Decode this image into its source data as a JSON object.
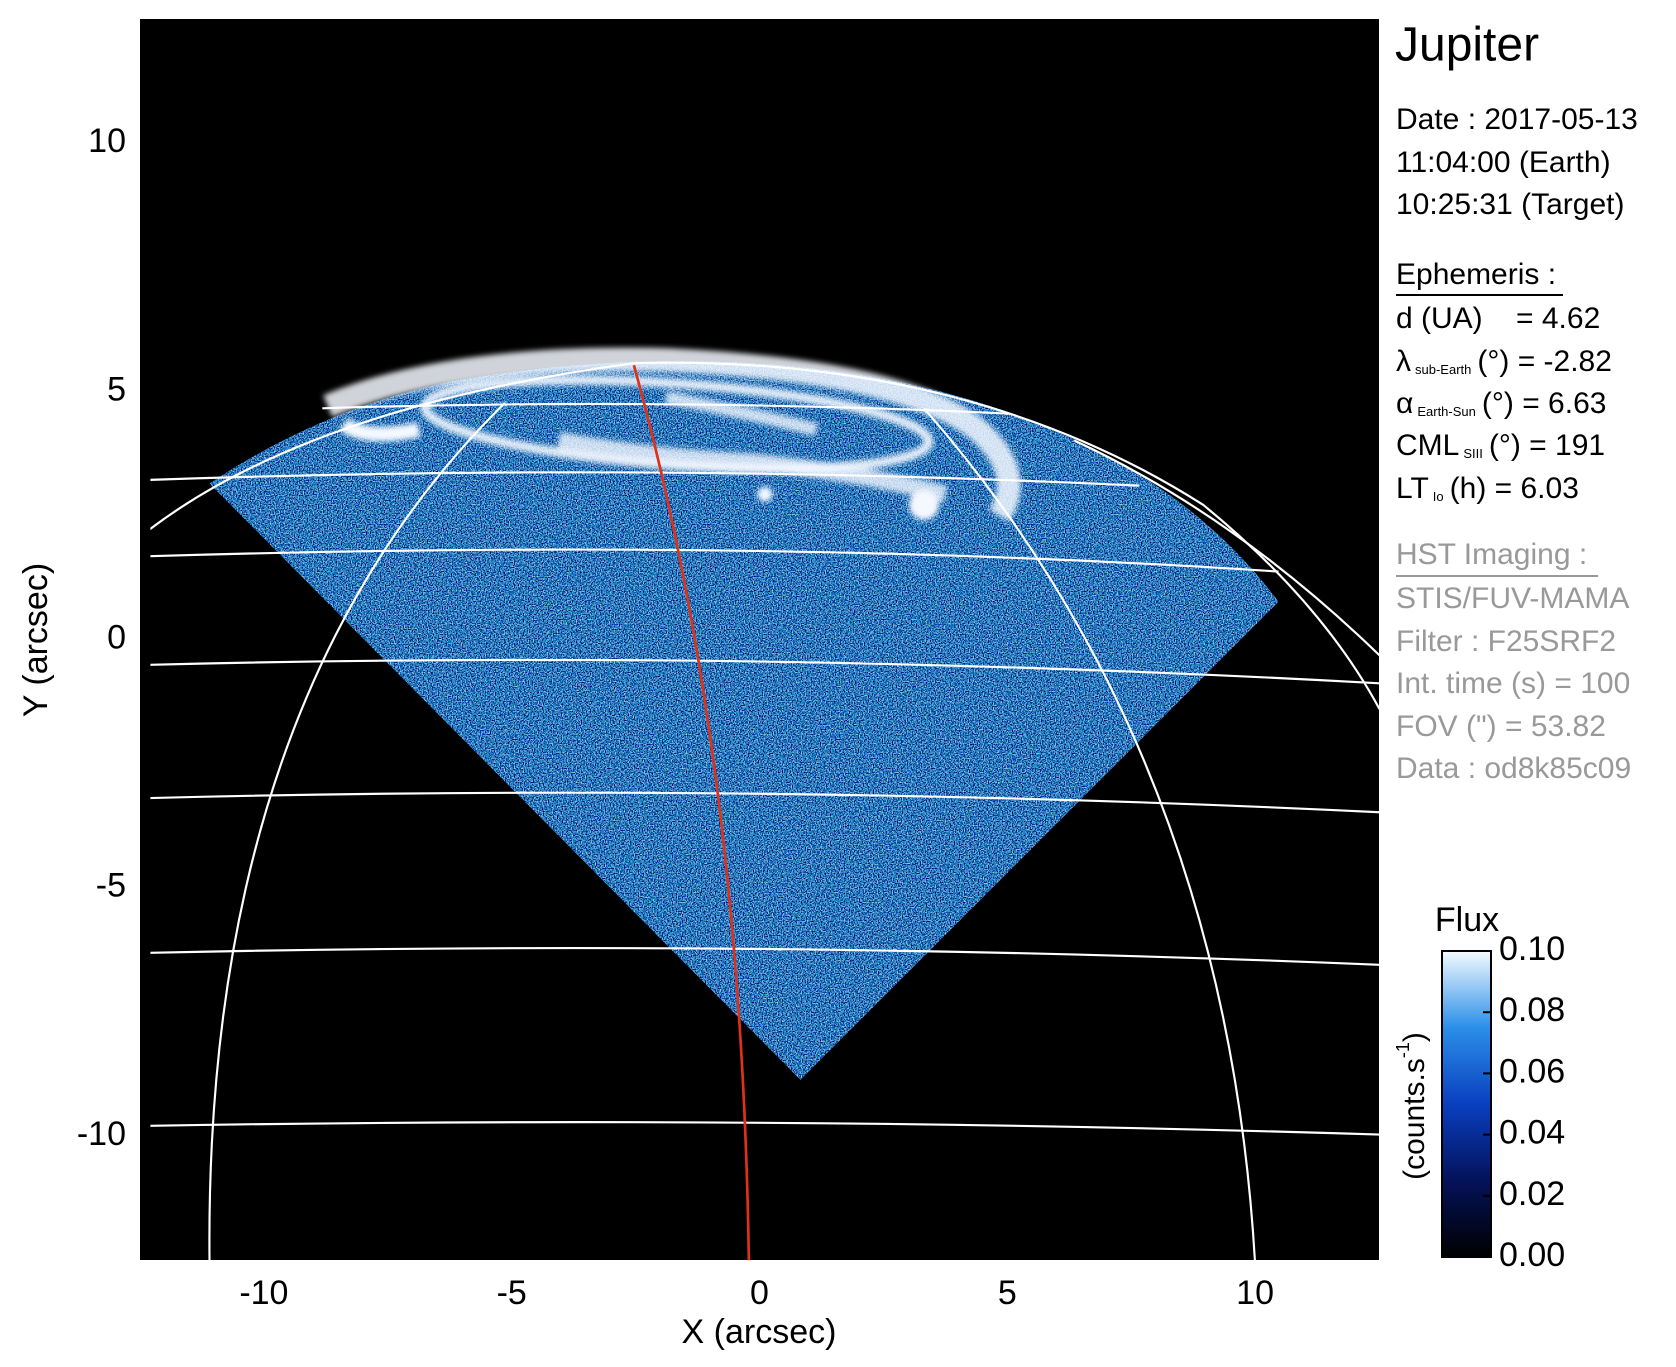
{
  "chart_data": {
    "type": "image",
    "title": "Jupiter",
    "xlabel": "X (arcsec)",
    "ylabel": "Y (arcsec)",
    "xlim": [
      -12.5,
      12.5
    ],
    "ylim": [
      -12.5,
      12.5
    ],
    "xticks": [
      -10,
      -5,
      0,
      5,
      10
    ],
    "yticks": [
      -10,
      -5,
      0,
      5,
      10
    ],
    "colorbar": {
      "title": "Flux",
      "label": {
        "main": "(counts.s",
        "sup": "-1",
        "end": ")"
      },
      "lim": [
        0,
        0.1
      ],
      "ticks": [
        {
          "value": 0,
          "label": "0.00"
        },
        {
          "value": 0.02,
          "label": "0.02"
        },
        {
          "value": 0.04,
          "label": "0.04"
        },
        {
          "value": 0.06,
          "label": "0.06"
        },
        {
          "value": 0.08,
          "label": "0.08"
        },
        {
          "value": 0.1,
          "label": "0.10"
        }
      ]
    },
    "info": {
      "date": [
        "Date : 2017-05-13",
        "11:04:00 (Earth)",
        "10:25:31 (Target)"
      ],
      "ephemeris": {
        "heading": "Ephemeris :",
        "lines": [
          {
            "main": "d (UA)    = 4.62"
          },
          {
            "main": "λ",
            "sub": "sub-Earth",
            "rest": "(°) = -2.82"
          },
          {
            "main": "α",
            "sub": "Earth-Sun",
            "rest": "(°) = 6.63"
          },
          {
            "main": "CML",
            "sub": "SIII",
            "rest": "(°) = 191"
          },
          {
            "main": "LT",
            "sub": "Io",
            "rest": "(h) = 6.03"
          }
        ]
      },
      "imaging": {
        "heading": "HST Imaging :",
        "lines": [
          "STIS/FUV-MAMA",
          "Filter : F25SRF2",
          "Int. time (s) = 100",
          "FOV (\") = 53.82",
          "Data : od8k85c09"
        ]
      }
    }
  }
}
